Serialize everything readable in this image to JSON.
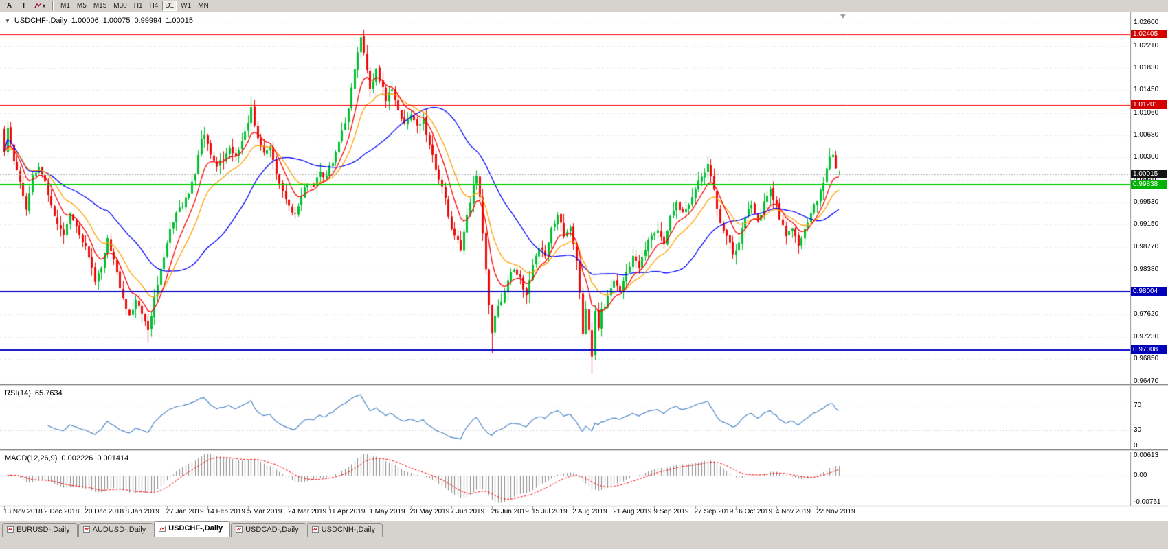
{
  "icons": {
    "collapse": "▼",
    "dropdown": "▾"
  },
  "toolbar": {
    "buttons": [
      {
        "label": "A"
      },
      {
        "label": "T"
      }
    ],
    "indicator_dropdown": "zigzag-line",
    "timeframes": [
      "M1",
      "M5",
      "M15",
      "M30",
      "H1",
      "H4",
      "D1",
      "W1",
      "MN"
    ],
    "active_timeframe": "D1"
  },
  "chart": {
    "title": {
      "symbol": "USDCHF-,Daily",
      "open": "1.00006",
      "high": "1.00075",
      "low": "0.99994",
      "close": "1.00015"
    },
    "price_axis": [
      {
        "text": "1.02600",
        "value": 1.026
      },
      {
        "text": "1.02210",
        "value": 1.0221
      },
      {
        "text": "1.01830",
        "value": 1.0183
      },
      {
        "text": "1.01450",
        "value": 1.0145
      },
      {
        "text": "1.01060",
        "value": 1.0106
      },
      {
        "text": "1.00680",
        "value": 1.0068
      },
      {
        "text": "1.00300",
        "value": 1.003
      },
      {
        "text": "0.99910",
        "value": 0.9991
      },
      {
        "text": "0.99530",
        "value": 0.9953
      },
      {
        "text": "0.99150",
        "value": 0.9915
      },
      {
        "text": "0.98770",
        "value": 0.9877
      },
      {
        "text": "0.98380",
        "value": 0.9838
      },
      {
        "text": "0.97620",
        "value": 0.9762
      },
      {
        "text": "0.97230",
        "value": 0.9723
      },
      {
        "text": "0.96850",
        "value": 0.9685
      },
      {
        "text": "0.96470",
        "value": 0.9647
      }
    ],
    "badges": [
      {
        "text": "1.02405",
        "value": 1.02405,
        "color": "#d40000"
      },
      {
        "text": "1.01201",
        "value": 1.01201,
        "color": "#d40000"
      },
      {
        "text": "1.00015",
        "value": 1.00015,
        "color": "#141414"
      },
      {
        "text": "0.99838",
        "value": 0.99838,
        "color": "#00b300"
      },
      {
        "text": "0.98004",
        "value": 0.98004,
        "color": "#0000bb"
      },
      {
        "text": "0.97008",
        "value": 0.97008,
        "color": "#0000bb"
      }
    ]
  },
  "chart_data": {
    "type": "candlestick",
    "symbol": "USDCHF",
    "timeframe": "Daily",
    "bars": 268,
    "price_range": {
      "min": 0.9642,
      "max": 1.0278
    },
    "candle_colors": {
      "up": "#00c02f",
      "down": "#ee0a0a"
    },
    "close_path": [
      [
        0,
        1.004
      ],
      [
        1,
        1.0085
      ],
      [
        3,
        1.003
      ],
      [
        5,
        0.999
      ],
      [
        7,
        0.995
      ],
      [
        9,
        1.0
      ],
      [
        11,
        1.001
      ],
      [
        13,
        0.9985
      ],
      [
        15,
        0.995
      ],
      [
        17,
        0.992
      ],
      [
        19,
        0.99
      ],
      [
        21,
        0.993
      ],
      [
        23,
        0.991
      ],
      [
        25,
        0.989
      ],
      [
        27,
        0.9865
      ],
      [
        29,
        0.9825
      ],
      [
        31,
        0.985
      ],
      [
        33,
        0.989
      ],
      [
        35,
        0.9855
      ],
      [
        37,
        0.9805
      ],
      [
        39,
        0.977
      ],
      [
        40,
        0.9755
      ],
      [
        42,
        0.979
      ],
      [
        44,
        0.976
      ],
      [
        46,
        0.9728
      ],
      [
        47,
        0.976
      ],
      [
        49,
        0.9815
      ],
      [
        51,
        0.9865
      ],
      [
        53,
        0.9905
      ],
      [
        55,
        0.9935
      ],
      [
        57,
        0.995
      ],
      [
        59,
        0.9975
      ],
      [
        61,
        1.001
      ],
      [
        63,
        1.007
      ],
      [
        64,
        1.0075
      ],
      [
        66,
        1.004
      ],
      [
        68,
        1.001
      ],
      [
        70,
        1.0025
      ],
      [
        72,
        1.0045
      ],
      [
        74,
        1.003
      ],
      [
        76,
        1.005
      ],
      [
        78,
        1.0085
      ],
      [
        79,
        1.011
      ],
      [
        81,
        1.0065
      ],
      [
        83,
        1.0045
      ],
      [
        85,
        1.006
      ],
      [
        87,
        1.0015
      ],
      [
        89,
        0.9975
      ],
      [
        91,
        0.9945
      ],
      [
        93,
        0.9935
      ],
      [
        95,
        0.9965
      ],
      [
        97,
        0.9985
      ],
      [
        99,
        0.9975
      ],
      [
        101,
        1.0005
      ],
      [
        103,
        0.9995
      ],
      [
        105,
        1.002
      ],
      [
        107,
        1.005
      ],
      [
        109,
        1.009
      ],
      [
        111,
        1.015
      ],
      [
        113,
        1.02
      ],
      [
        114,
        1.023
      ],
      [
        115,
        1.021
      ],
      [
        117,
        1.015
      ],
      [
        119,
        1.0185
      ],
      [
        120,
        1.0165
      ],
      [
        122,
        1.013
      ],
      [
        124,
        1.015
      ],
      [
        126,
        1.0115
      ],
      [
        128,
        1.0095
      ],
      [
        130,
        1.011
      ],
      [
        132,
        1.0085
      ],
      [
        134,
        1.0095
      ],
      [
        136,
        1.005
      ],
      [
        138,
        1.0005
      ],
      [
        140,
        0.9985
      ],
      [
        142,
        0.993
      ],
      [
        144,
        0.99
      ],
      [
        146,
        0.9875
      ],
      [
        148,
        0.993
      ],
      [
        150,
        0.9985
      ],
      [
        151,
        1.0
      ],
      [
        152,
        0.996
      ],
      [
        153,
        0.9895
      ],
      [
        154,
        0.983
      ],
      [
        155,
        0.977
      ],
      [
        156,
        0.9725
      ],
      [
        157,
        0.975
      ],
      [
        159,
        0.978
      ],
      [
        161,
        0.9815
      ],
      [
        163,
        0.984
      ],
      [
        165,
        0.9825
      ],
      [
        167,
        0.9795
      ],
      [
        169,
        0.985
      ],
      [
        171,
        0.988
      ],
      [
        173,
        0.9865
      ],
      [
        175,
        0.9905
      ],
      [
        177,
        0.9925
      ],
      [
        179,
        0.9895
      ],
      [
        181,
        0.9905
      ],
      [
        182,
        0.9885
      ],
      [
        183,
        0.986
      ],
      [
        184,
        0.98
      ],
      [
        185,
        0.973
      ],
      [
        186,
        0.977
      ],
      [
        187,
        0.9735
      ],
      [
        188,
        0.969
      ],
      [
        189,
        0.977
      ],
      [
        190,
        0.9735
      ],
      [
        191,
        0.9765
      ],
      [
        193,
        0.979
      ],
      [
        195,
        0.982
      ],
      [
        197,
        0.9795
      ],
      [
        199,
        0.9835
      ],
      [
        201,
        0.986
      ],
      [
        203,
        0.984
      ],
      [
        205,
        0.9875
      ],
      [
        207,
        0.9895
      ],
      [
        209,
        0.9905
      ],
      [
        211,
        0.9885
      ],
      [
        213,
        0.993
      ],
      [
        215,
        0.995
      ],
      [
        217,
        0.993
      ],
      [
        219,
        0.9955
      ],
      [
        221,
        0.9975
      ],
      [
        223,
        0.9995
      ],
      [
        225,
        1.002
      ],
      [
        226,
        0.9995
      ],
      [
        228,
        0.9945
      ],
      [
        230,
        0.9905
      ],
      [
        232,
        0.9875
      ],
      [
        233,
        0.9855
      ],
      [
        235,
        0.9885
      ],
      [
        237,
        0.9925
      ],
      [
        239,
        0.995
      ],
      [
        241,
        0.9925
      ],
      [
        243,
        0.9955
      ],
      [
        245,
        0.9975
      ],
      [
        247,
        0.995
      ],
      [
        248,
        0.9925
      ],
      [
        250,
        0.9895
      ],
      [
        252,
        0.991
      ],
      [
        254,
        0.9885
      ],
      [
        256,
        0.9915
      ],
      [
        258,
        0.994
      ],
      [
        260,
        0.9955
      ],
      [
        262,
        0.999
      ],
      [
        264,
        1.0025
      ],
      [
        265,
        1.0035
      ],
      [
        266,
        1.0008
      ],
      [
        267,
        1.00015
      ]
    ],
    "wick_overrides": [
      {
        "bar": 46,
        "low": 0.9713
      },
      {
        "bar": 79,
        "high": 1.0135
      },
      {
        "bar": 114,
        "high": 1.024
      },
      {
        "bar": 156,
        "low": 0.9695
      },
      {
        "bar": 188,
        "low": 0.966
      },
      {
        "bar": 265,
        "high": 1.0042
      }
    ],
    "last_bar": {
      "open": 1.00006,
      "high": 1.00075,
      "low": 0.99994,
      "close": 1.00015
    },
    "horizontal_lines": [
      {
        "value": 1.02405,
        "color": "#ff0000",
        "width": 1
      },
      {
        "value": 1.01201,
        "color": "#ff0000",
        "width": 1
      },
      {
        "value": 0.99838,
        "color": "#00cc00",
        "width": 2
      },
      {
        "value": 0.98004,
        "color": "#0000cc",
        "width": 2
      },
      {
        "value": 0.97008,
        "color": "#0000cc",
        "width": 2
      }
    ],
    "current_price": {
      "value": 1.00015,
      "line_color": "#a8a8a8"
    },
    "moving_averages": [
      {
        "name": "ma-slow",
        "period": 34,
        "method": "sma",
        "color": "#0000ff"
      },
      {
        "name": "ma-medium",
        "period": 16,
        "method": "ema",
        "color": "#ffa000"
      },
      {
        "name": "ma-fast",
        "period": 8,
        "method": "ema",
        "color": "#ff0000"
      }
    ],
    "date_axis": [
      {
        "text": "13 Nov 2018",
        "bar": 0
      },
      {
        "text": "2 Dec 2018",
        "bar": 13
      },
      {
        "text": "20 Dec 2018",
        "bar": 26
      },
      {
        "text": "8 Jan 2019",
        "bar": 39
      },
      {
        "text": "27 Jan 2019",
        "bar": 52
      },
      {
        "text": "14 Feb 2019",
        "bar": 65
      },
      {
        "text": "5 Mar 2019",
        "bar": 78
      },
      {
        "text": "24 Mar 2019",
        "bar": 91
      },
      {
        "text": "11 Apr 2019",
        "bar": 104
      },
      {
        "text": "1 May 2019",
        "bar": 117
      },
      {
        "text": "20 May 2019",
        "bar": 130
      },
      {
        "text": "7 Jun 2019",
        "bar": 143
      },
      {
        "text": "26 Jun 2019",
        "bar": 156
      },
      {
        "text": "15 Jul 2019",
        "bar": 169
      },
      {
        "text": "2 Aug 2019",
        "bar": 182
      },
      {
        "text": "21 Aug 2019",
        "bar": 195
      },
      {
        "text": "9 Sep 2019",
        "bar": 208
      },
      {
        "text": "27 Sep 2019",
        "bar": 221
      },
      {
        "text": "16 Oct 2019",
        "bar": 234
      },
      {
        "text": "4 Nov 2019",
        "bar": 247
      },
      {
        "text": "22 Nov 2019",
        "bar": 260
      }
    ],
    "rsi": {
      "label": "RSI(14)",
      "current": "65.7634",
      "period": 14,
      "color": "#4a86c8",
      "levels": [
        70,
        30
      ],
      "scale": [
        {
          "text": "70",
          "value": 70
        },
        {
          "text": "30",
          "value": 30
        },
        {
          "text": "0",
          "value": 0
        }
      ]
    },
    "macd": {
      "label": "MACD(12,26,9)",
      "current": [
        "0.002226",
        "0.001414"
      ],
      "fast": 12,
      "slow": 26,
      "signal_period": 9,
      "histogram_color": "#8c8c8c",
      "signal_color": "#ff0000",
      "range": {
        "min": -0.00761,
        "max": 0.00613
      },
      "scale": [
        {
          "text": "0.00613",
          "value": 0.00613
        },
        {
          "text": "0.00",
          "value": 0
        },
        {
          "text": "-0.00761",
          "value": -0.00761
        }
      ]
    }
  },
  "tabs": [
    {
      "label": "EURUSD-,Daily",
      "active": false
    },
    {
      "label": "AUDUSD-,Daily",
      "active": false
    },
    {
      "label": "USDCHF-,Daily",
      "active": true
    },
    {
      "label": "USDCAD-,Daily",
      "active": false
    },
    {
      "label": "USDCNH-,Daily",
      "active": false
    }
  ]
}
